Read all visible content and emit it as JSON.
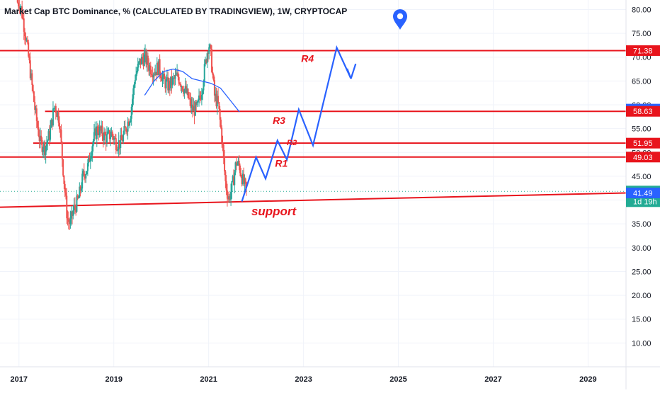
{
  "title": "Market Cap BTC Dominance, % (CALCULATED BY TRADINGVIEW), 1W, CRYPTOCAP",
  "colors": {
    "up": "#26a69a",
    "down": "#ef5350",
    "resistance": "#e8141c",
    "projection": "#2962ff",
    "ma": "#2962ff",
    "label_text": "#e8141c",
    "last_price": "#22ab94",
    "blue_badge": "#2962ff"
  },
  "icons": [
    "location-pin-icon"
  ],
  "chart_data": {
    "type": "candlestick",
    "title": "Market Cap BTC Dominance, % (CALCULATED BY TRADINGVIEW), 1W, CRYPTOCAP",
    "ylim": [
      5,
      82
    ],
    "xlim": [
      2016.6,
      2029.8
    ],
    "y_ticks": [
      10,
      15,
      20,
      25,
      30,
      35,
      40,
      45,
      50,
      55,
      60,
      65,
      70,
      75,
      80
    ],
    "y_tick_labels": [
      "10.00",
      "15.00",
      "20.00",
      "25.00",
      "30.00",
      "35.00",
      "40.00",
      "45.00",
      "50.00",
      "55.00",
      "60.00",
      "65.00",
      "70.00",
      "75.00",
      "80.00"
    ],
    "x_ticks": [
      2017,
      2019,
      2021,
      2023,
      2025,
      2027,
      2029
    ],
    "x_tick_labels": [
      "2017",
      "2019",
      "2021",
      "2023",
      "2025",
      "2027",
      "2029"
    ],
    "price_path": [
      [
        2016.95,
        84
      ],
      [
        2017.05,
        80
      ],
      [
        2017.15,
        74
      ],
      [
        2017.25,
        66
      ],
      [
        2017.35,
        58
      ],
      [
        2017.45,
        52
      ],
      [
        2017.55,
        51
      ],
      [
        2017.65,
        54
      ],
      [
        2017.75,
        60
      ],
      [
        2017.85,
        57
      ],
      [
        2017.95,
        44
      ],
      [
        2018.02,
        36
      ],
      [
        2018.08,
        35
      ],
      [
        2018.15,
        38
      ],
      [
        2018.25,
        40
      ],
      [
        2018.35,
        45
      ],
      [
        2018.45,
        47
      ],
      [
        2018.55,
        52
      ],
      [
        2018.65,
        55
      ],
      [
        2018.75,
        54
      ],
      [
        2018.85,
        53
      ],
      [
        2018.95,
        54
      ],
      [
        2019.05,
        52
      ],
      [
        2019.15,
        52
      ],
      [
        2019.25,
        55
      ],
      [
        2019.35,
        58
      ],
      [
        2019.45,
        66
      ],
      [
        2019.55,
        69
      ],
      [
        2019.65,
        70
      ],
      [
        2019.75,
        68
      ],
      [
        2019.85,
        67
      ],
      [
        2019.95,
        68
      ],
      [
        2020.05,
        65
      ],
      [
        2020.15,
        64
      ],
      [
        2020.25,
        65
      ],
      [
        2020.35,
        66
      ],
      [
        2020.45,
        64
      ],
      [
        2020.55,
        62
      ],
      [
        2020.65,
        59
      ],
      [
        2020.75,
        59
      ],
      [
        2020.85,
        63
      ],
      [
        2020.95,
        70
      ],
      [
        2021.0,
        73
      ],
      [
        2021.05,
        70
      ],
      [
        2021.12,
        62
      ],
      [
        2021.2,
        60
      ],
      [
        2021.28,
        53
      ],
      [
        2021.35,
        44
      ],
      [
        2021.42,
        40
      ],
      [
        2021.5,
        43
      ],
      [
        2021.58,
        48
      ],
      [
        2021.65,
        47
      ],
      [
        2021.72,
        44
      ],
      [
        2021.8,
        41.8
      ]
    ],
    "moving_average": [
      [
        2019.65,
        62
      ],
      [
        2019.85,
        65
      ],
      [
        2020.05,
        67
      ],
      [
        2020.25,
        67.5
      ],
      [
        2020.45,
        67
      ],
      [
        2020.65,
        65.5
      ],
      [
        2020.85,
        65
      ],
      [
        2021.05,
        64.5
      ],
      [
        2021.25,
        63.5
      ],
      [
        2021.45,
        61
      ],
      [
        2021.65,
        58.5
      ]
    ],
    "last_price": 41.82,
    "countdown": "1d 19h",
    "horizontal_levels": [
      {
        "value": 71.38,
        "x_start": 2016.6,
        "name": "R4"
      },
      {
        "value": 58.63,
        "x_start": 2017.55,
        "name": "R3"
      },
      {
        "value": 51.95,
        "x_start": 2017.3,
        "name": "R2"
      },
      {
        "value": 49.03,
        "x_start": 2016.6,
        "name": "R1"
      }
    ],
    "support_line": {
      "from": [
        2016.6,
        38.5
      ],
      "to": [
        2029.8,
        41.5
      ],
      "label": "support"
    },
    "projection_path": [
      [
        2021.7,
        39.7
      ],
      [
        2022.0,
        49.0
      ],
      [
        2022.2,
        44.5
      ],
      [
        2022.45,
        52.5
      ],
      [
        2022.65,
        48.5
      ],
      [
        2022.9,
        59.0
      ],
      [
        2023.2,
        51.5
      ],
      [
        2023.7,
        72.0
      ],
      [
        2024.0,
        65.5
      ]
    ],
    "projection_arrow_tip": [
      2024.0,
      65.5
    ],
    "projection_last_segment_from": [
      2023.7,
      72.0
    ],
    "projection_arrow_wings": [
      [
        2023.92,
        67.6
      ],
      [
        2024.1,
        68.6
      ]
    ],
    "projection_first_point_note": "path starts at support",
    "annotations": [
      {
        "text": "R4",
        "x": 2022.95,
        "y": 69.0
      },
      {
        "text": "R3",
        "x": 2022.35,
        "y": 56.0
      },
      {
        "text": "R2",
        "x": 2022.65,
        "y": 51.5
      },
      {
        "text": "R1",
        "x": 2022.4,
        "y": 47.0
      },
      {
        "text": "support",
        "x": 2021.9,
        "y": 36.8
      }
    ],
    "axis_badges": [
      {
        "text": "71.38",
        "value": 71.38,
        "color": "#e8141c"
      },
      {
        "text": "59.09",
        "value": 59.09,
        "color": "#2962ff"
      },
      {
        "text": "58.63",
        "value": 58.63,
        "color": "#e8141c"
      },
      {
        "text": "51.95",
        "value": 51.95,
        "color": "#e8141c"
      },
      {
        "text": "49.03",
        "value": 49.03,
        "color": "#e8141c"
      },
      {
        "text": "41.82",
        "value": 41.82,
        "color": "#22ab94",
        "subtext": "1d 19h"
      },
      {
        "text": "41.49",
        "value": 41.49,
        "color": "#2962ff"
      }
    ]
  }
}
